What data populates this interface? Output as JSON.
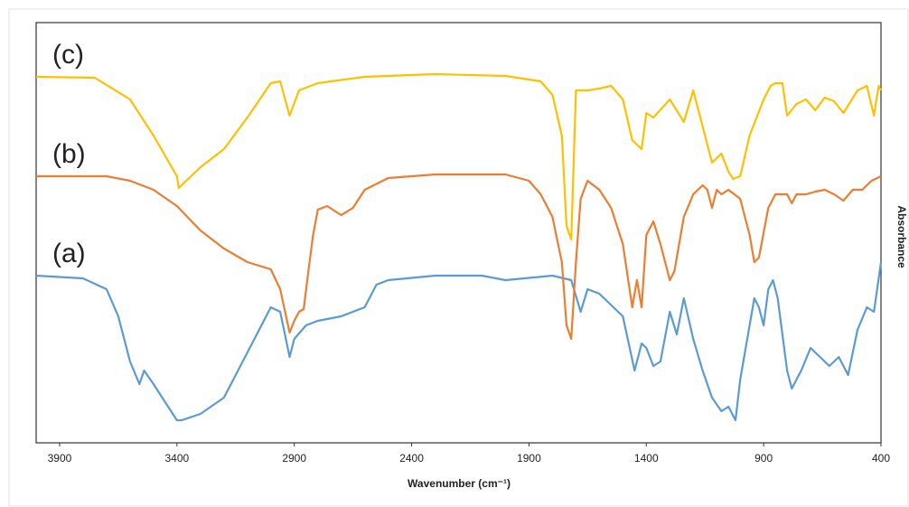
{
  "chart_data": {
    "type": "line",
    "xlabel": "Wavenumber (cm⁻¹)",
    "ylabel": "Absorbance",
    "xlim": [
      4000,
      400
    ],
    "xticks": [
      3900,
      3400,
      2900,
      2400,
      1900,
      1400,
      900,
      400
    ],
    "ylim": [
      0,
      465
    ],
    "series": [
      {
        "name": "(a)",
        "color": "#5b9bd5",
        "x": [
          4000,
          3800,
          3700,
          3650,
          3600,
          3560,
          3540,
          3500,
          3450,
          3400,
          3380,
          3300,
          3200,
          3100,
          3000,
          2960,
          2920,
          2900,
          2850,
          2800,
          2700,
          2600,
          2550,
          2500,
          2300,
          2100,
          2000,
          1800,
          1720,
          1680,
          1650,
          1600,
          1500,
          1450,
          1420,
          1400,
          1370,
          1340,
          1300,
          1270,
          1240,
          1200,
          1160,
          1120,
          1080,
          1050,
          1020,
          1000,
          960,
          940,
          920,
          900,
          880,
          860,
          840,
          800,
          780,
          740,
          700,
          660,
          620,
          580,
          540,
          500,
          460,
          430,
          400
        ],
        "values": [
          185,
          182,
          170,
          140,
          90,
          65,
          80,
          65,
          45,
          25,
          25,
          32,
          50,
          100,
          150,
          145,
          95,
          115,
          130,
          135,
          140,
          150,
          175,
          180,
          185,
          185,
          180,
          185,
          180,
          145,
          170,
          165,
          140,
          80,
          110,
          105,
          85,
          90,
          145,
          120,
          160,
          115,
          80,
          50,
          35,
          40,
          25,
          70,
          130,
          160,
          150,
          130,
          170,
          180,
          160,
          80,
          60,
          80,
          105,
          95,
          85,
          95,
          75,
          125,
          150,
          145,
          200
        ]
      },
      {
        "name": "(b)",
        "color": "#ed7d31",
        "x": [
          4000,
          3700,
          3600,
          3500,
          3400,
          3300,
          3200,
          3100,
          3000,
          2960,
          2920,
          2900,
          2880,
          2860,
          2840,
          2820,
          2800,
          2760,
          2700,
          2650,
          2600,
          2500,
          2300,
          2000,
          1900,
          1850,
          1800,
          1760,
          1740,
          1720,
          1700,
          1680,
          1650,
          1600,
          1550,
          1500,
          1460,
          1440,
          1420,
          1400,
          1370,
          1340,
          1300,
          1280,
          1240,
          1200,
          1160,
          1140,
          1120,
          1100,
          1080,
          1050,
          1000,
          960,
          940,
          920,
          880,
          850,
          800,
          780,
          760,
          720,
          680,
          640,
          600,
          560,
          520,
          480,
          440,
          400
        ],
        "values": [
          295,
          295,
          290,
          280,
          262,
          235,
          215,
          200,
          192,
          170,
          122,
          135,
          145,
          148,
          190,
          230,
          258,
          262,
          252,
          260,
          280,
          293,
          297,
          297,
          290,
          275,
          250,
          200,
          130,
          115,
          200,
          270,
          290,
          280,
          260,
          220,
          150,
          180,
          150,
          230,
          245,
          220,
          180,
          190,
          250,
          275,
          285,
          280,
          260,
          280,
          275,
          280,
          270,
          230,
          200,
          205,
          260,
          275,
          275,
          265,
          275,
          275,
          278,
          280,
          275,
          268,
          280,
          280,
          290,
          295
        ]
      },
      {
        "name": "(c)",
        "color": "#ffc000",
        "x": [
          4000,
          3750,
          3600,
          3500,
          3400,
          3392,
          3300,
          3200,
          3100,
          3000,
          2960,
          2920,
          2880,
          2800,
          2600,
          2300,
          2000,
          1850,
          1800,
          1760,
          1740,
          1720,
          1700,
          1650,
          1600,
          1550,
          1500,
          1460,
          1420,
          1400,
          1370,
          1300,
          1240,
          1200,
          1160,
          1120,
          1080,
          1050,
          1030,
          1000,
          960,
          900,
          870,
          850,
          820,
          800,
          760,
          720,
          680,
          640,
          600,
          560,
          500,
          460,
          430,
          410,
          400
        ],
        "values": [
          405,
          404,
          380,
          340,
          295,
          282,
          305,
          325,
          360,
          398,
          400,
          362,
          390,
          398,
          405,
          408,
          406,
          400,
          385,
          340,
          240,
          225,
          390,
          390,
          392,
          395,
          380,
          335,
          325,
          365,
          360,
          380,
          355,
          390,
          350,
          310,
          320,
          300,
          292,
          295,
          340,
          380,
          395,
          398,
          398,
          362,
          375,
          380,
          368,
          382,
          378,
          365,
          390,
          395,
          362,
          395,
          390
        ]
      }
    ]
  }
}
